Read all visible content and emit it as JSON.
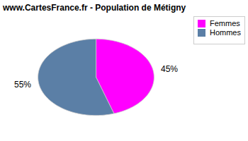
{
  "chart_data": {
    "type": "pie",
    "title": "www.CartesFrance.fr - Population de Métigny",
    "categories": [
      "Femmes",
      "Hommes"
    ],
    "values": [
      45,
      55
    ],
    "value_labels": [
      "45%",
      "55%"
    ],
    "colors": [
      "#ff00ff",
      "#5b7fa6"
    ],
    "data_labels": true,
    "legend": "upper right"
  }
}
